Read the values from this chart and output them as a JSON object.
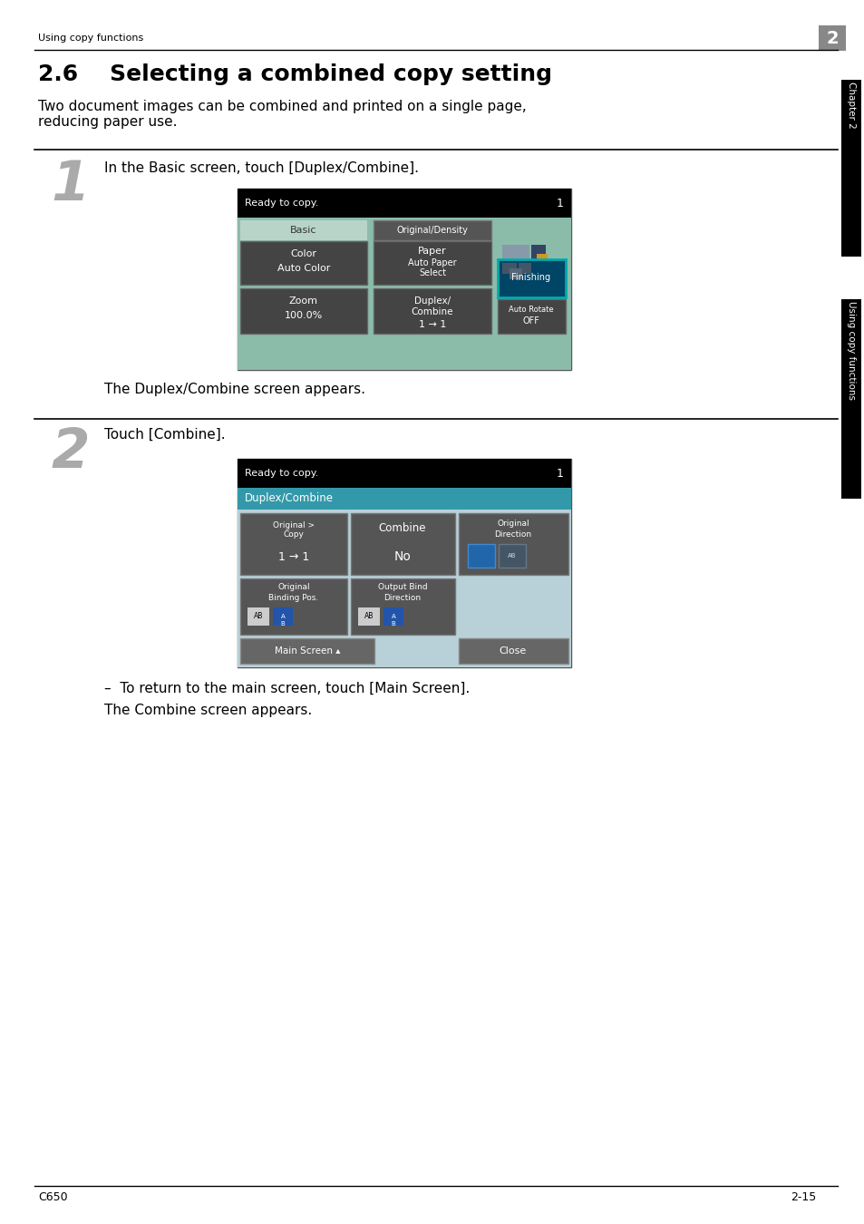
{
  "page_bg": "#ffffff",
  "header_text": "Using copy functions",
  "header_number": "2",
  "header_number_bg": "#888888",
  "title": "2.6    Selecting a combined copy setting",
  "intro_text": "Two document images can be combined and printed on a single page,\nreducing paper use.",
  "step1_number": "1",
  "step1_text": "In the Basic screen, touch [Duplex/Combine].",
  "step1_sub": "The Duplex/Combine screen appears.",
  "step2_number": "2",
  "step2_text": "Touch [Combine].",
  "step2_sub1": "–  To return to the main screen, touch [Main Screen].",
  "step2_sub2": "The Combine screen appears.",
  "footer_left": "C650",
  "footer_right": "2-15",
  "sidebar_top_text": "Chapter 2",
  "sidebar_bot_text": "Using copy functions"
}
